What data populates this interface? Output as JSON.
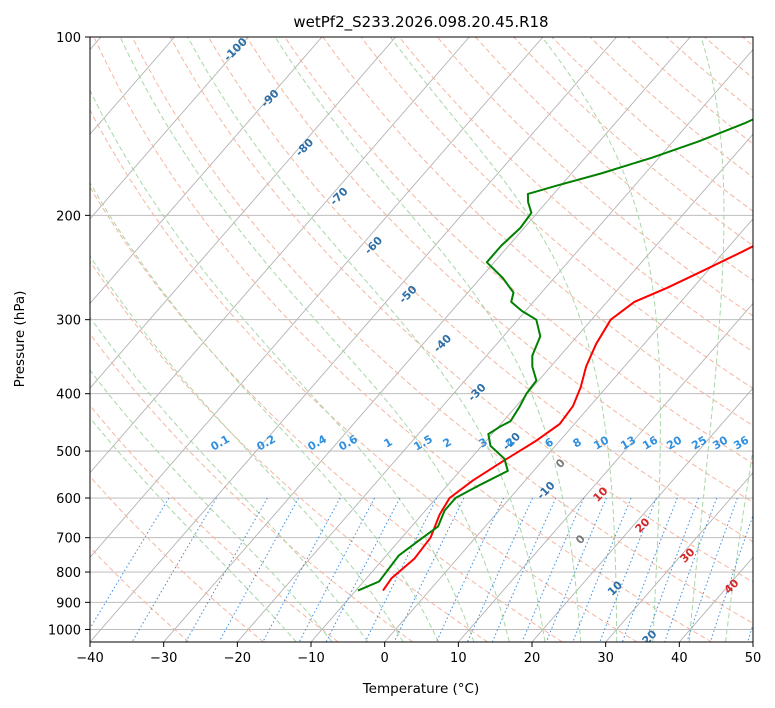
{
  "chart_data": {
    "type": "line",
    "chart_kind": "Skew-T log-P diagram",
    "title": "wetPf2_S233.2026.098.20.45.R18",
    "xlabel": "Temperature (°C)",
    "ylabel": "Pressure (hPa)",
    "xlim": [
      -40,
      50
    ],
    "ylim": [
      1050,
      100
    ],
    "x_ticks": [
      "−40",
      "−30",
      "−20",
      "−10",
      "0",
      "10",
      "20",
      "30",
      "40",
      "50"
    ],
    "x_tick_values": [
      -40,
      -30,
      -20,
      -10,
      0,
      10,
      20,
      30,
      40,
      50
    ],
    "y_ticks": [
      "100",
      "200",
      "300",
      "400",
      "500",
      "600",
      "700",
      "800",
      "900",
      "1000"
    ],
    "y_tick_values": [
      100,
      200,
      300,
      400,
      500,
      600,
      700,
      800,
      900,
      1000
    ],
    "skew_deg_per_decade": 70,
    "series": [
      {
        "name": "Temperature",
        "color": "#ff0000",
        "points": [
          [
            860,
            -6.3
          ],
          [
            820,
            -6.6
          ],
          [
            760,
            -5.8
          ],
          [
            700,
            -6.1
          ],
          [
            640,
            -7.6
          ],
          [
            600,
            -8.2
          ],
          [
            560,
            -7.1
          ],
          [
            520,
            -5.3
          ],
          [
            480,
            -3.2
          ],
          [
            450,
            -2.0
          ],
          [
            420,
            -2.3
          ],
          [
            390,
            -3.5
          ],
          [
            360,
            -5.2
          ],
          [
            330,
            -6.5
          ],
          [
            300,
            -7.4
          ],
          [
            280,
            -6.3
          ],
          [
            265,
            -3.5
          ],
          [
            250,
            -1.0
          ],
          [
            230,
            2.5
          ],
          [
            210,
            6.0
          ],
          [
            195,
            8.5
          ],
          [
            180,
            10.5
          ],
          [
            165,
            12.0
          ],
          [
            150,
            13.5
          ],
          [
            135,
            15.5
          ],
          [
            120,
            18.0
          ],
          [
            110,
            19.5
          ],
          [
            105,
            20.0
          ],
          [
            100,
            20.5
          ]
        ]
      },
      {
        "name": "Dewpoint",
        "color": "#008000",
        "points": [
          [
            860,
            -9.7
          ],
          [
            830,
            -7.9
          ],
          [
            790,
            -8.1
          ],
          [
            750,
            -8.3
          ],
          [
            710,
            -7.4
          ],
          [
            670,
            -6.4
          ],
          [
            630,
            -7.4
          ],
          [
            600,
            -7.4
          ],
          [
            570,
            -5.6
          ],
          [
            540,
            -3.5
          ],
          [
            515,
            -5.4
          ],
          [
            490,
            -8.8
          ],
          [
            468,
            -10.5
          ],
          [
            455,
            -9.8
          ],
          [
            445,
            -9.0
          ],
          [
            420,
            -9.5
          ],
          [
            400,
            -10.1
          ],
          [
            380,
            -10.3
          ],
          [
            360,
            -12.5
          ],
          [
            345,
            -13.8
          ],
          [
            320,
            -15.0
          ],
          [
            300,
            -17.5
          ],
          [
            290,
            -20.5
          ],
          [
            280,
            -23.0
          ],
          [
            270,
            -23.8
          ],
          [
            255,
            -27.0
          ],
          [
            240,
            -31.0
          ],
          [
            225,
            -31.0
          ],
          [
            210,
            -30.5
          ],
          [
            198,
            -30.8
          ],
          [
            190,
            -32.5
          ],
          [
            184,
            -33.5
          ],
          [
            178,
            -30.5
          ],
          [
            170,
            -26.0
          ],
          [
            160,
            -21.0
          ],
          [
            150,
            -16.5
          ],
          [
            140,
            -12.5
          ],
          [
            130,
            -9.0
          ],
          [
            120,
            -6.0
          ],
          [
            110,
            -3.0
          ],
          [
            100,
            -0.5
          ]
        ]
      }
    ],
    "isotherm_step_c": 10,
    "dry_adiabat_labels_c": [
      "-100",
      "-90",
      "-80",
      "-70",
      "-60",
      "-50",
      "-40",
      "-30",
      "-20",
      "-10",
      "0",
      "10",
      "20",
      "30",
      "40"
    ],
    "moist_adiabat_labels_c": [
      "0",
      "10",
      "20",
      "30",
      "40"
    ],
    "mixing_ratio_labels_gkg": [
      "0.1",
      "0.2",
      "0.4",
      "0.6",
      "1",
      "1.5",
      "2",
      "3",
      "4",
      "6",
      "8",
      "10",
      "13",
      "16",
      "20",
      "25",
      "30",
      "36"
    ],
    "colors": {
      "temperature": "#ff0000",
      "dewpoint": "#008000",
      "isotherm": "#b3b3b3",
      "isobar": "#b3b3b3",
      "dry_adiabat": "#f5b5a0",
      "moist_adiabat": "#a8d6a8",
      "mixing_ratio": "#3b8fe0",
      "dry_adiabat_label": "#2d6fa8",
      "mixing_label": "#2f8fe0",
      "moist_label": "#d62728"
    }
  }
}
